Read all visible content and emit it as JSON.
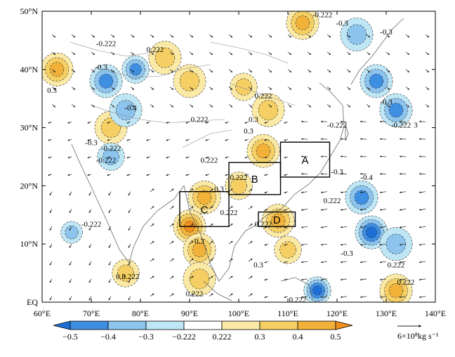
{
  "chart_data": {
    "type": "heatmap",
    "title": "",
    "xlabel": "",
    "ylabel": "",
    "xlim": [
      60,
      140
    ],
    "ylim": [
      0,
      50
    ],
    "x_ticks": [
      {
        "value": 60,
        "label": "60°E"
      },
      {
        "value": 70,
        "label": "70°E"
      },
      {
        "value": 80,
        "label": "80°E"
      },
      {
        "value": 90,
        "label": "90°E"
      },
      {
        "value": 100,
        "label": "100°E"
      },
      {
        "value": 110,
        "label": "110°E"
      },
      {
        "value": 120,
        "label": "120°E"
      },
      {
        "value": 130,
        "label": "130°E"
      },
      {
        "value": 140,
        "label": "140°E"
      }
    ],
    "y_ticks": [
      {
        "value": 0,
        "label": "EQ"
      },
      {
        "value": 10,
        "label": "10°N"
      },
      {
        "value": 20,
        "label": "20°N"
      },
      {
        "value": 30,
        "label": "30°N"
      },
      {
        "value": 40,
        "label": "40°N"
      },
      {
        "value": 50,
        "label": "50°N"
      }
    ],
    "colorbar": {
      "levels": [
        -0.5,
        -0.4,
        -0.3,
        -0.222,
        0.222,
        0.3,
        0.4,
        0.5
      ],
      "labels": [
        "−0.5",
        "−0.4",
        "−0.3",
        "−0.222",
        "0.222",
        "0.3",
        "0.4",
        "0.5"
      ],
      "colors": [
        "#1d6fd6",
        "#3e8ee2",
        "#8cc4ee",
        "#bfe6f5",
        "#ffffff",
        "#fbe9a6",
        "#f5cf63",
        "#f2b23a",
        "#ee8f1e"
      ]
    },
    "regions": [
      {
        "label": "A",
        "lon": [
          108.5,
          118.5
        ],
        "lat": [
          21.5,
          27.5
        ]
      },
      {
        "label": "B",
        "lon": [
          98,
          108.5
        ],
        "lat": [
          18.5,
          24
        ]
      },
      {
        "label": "C",
        "lon": [
          88,
          98
        ],
        "lat": [
          13,
          19
        ]
      },
      {
        "label": "D",
        "lon": [
          104,
          111.5
        ],
        "lat": [
          13,
          15.5
        ]
      }
    ],
    "fields": [
      {
        "lon": 63,
        "lat": 40,
        "r": 3,
        "v": 0.4
      },
      {
        "lon": 74,
        "lat": 30,
        "r": 3,
        "v": 0.3
      },
      {
        "lon": 85,
        "lat": 42,
        "r": 3,
        "v": 0.3
      },
      {
        "lon": 90,
        "lat": 38,
        "r": 3,
        "v": 0.3
      },
      {
        "lon": 101,
        "lat": 37,
        "r": 2.5,
        "v": 0.3
      },
      {
        "lon": 106,
        "lat": 33,
        "r": 3,
        "v": 0.3
      },
      {
        "lon": 105,
        "lat": 26,
        "r": 3,
        "v": 0.4
      },
      {
        "lon": 100,
        "lat": 20,
        "r": 2.5,
        "v": 0.3
      },
      {
        "lon": 93,
        "lat": 18,
        "r": 3,
        "v": 0.4
      },
      {
        "lon": 90,
        "lat": 13,
        "r": 3,
        "v": 0.5
      },
      {
        "lon": 92,
        "lat": 9,
        "r": 3,
        "v": 0.4
      },
      {
        "lon": 92,
        "lat": 4,
        "r": 3,
        "v": 0.3
      },
      {
        "lon": 77,
        "lat": 5,
        "r": 2.5,
        "v": 0.3
      },
      {
        "lon": 108,
        "lat": 14,
        "r": 3,
        "v": 0.4
      },
      {
        "lon": 110,
        "lat": 9,
        "r": 2.5,
        "v": 0.3
      },
      {
        "lon": 132,
        "lat": 2,
        "r": 3,
        "v": 0.4
      },
      {
        "lon": 113,
        "lat": 48,
        "r": 3,
        "v": 0.4
      },
      {
        "lon": 73,
        "lat": 38,
        "r": 3,
        "v": -0.4
      },
      {
        "lon": 79,
        "lat": 40,
        "r": 2.5,
        "v": -0.4
      },
      {
        "lon": 77,
        "lat": 33,
        "r": 3,
        "v": -0.3
      },
      {
        "lon": 74,
        "lat": 25,
        "r": 2.5,
        "v": -0.3
      },
      {
        "lon": 66,
        "lat": 12,
        "r": 2,
        "v": -0.3
      },
      {
        "lon": 124,
        "lat": 46,
        "r": 3,
        "v": -0.3
      },
      {
        "lon": 128,
        "lat": 38,
        "r": 3,
        "v": -0.4
      },
      {
        "lon": 132,
        "lat": 33,
        "r": 3,
        "v": -0.4
      },
      {
        "lon": 125,
        "lat": 18,
        "r": 3,
        "v": -0.4
      },
      {
        "lon": 127,
        "lat": 12,
        "r": 3,
        "v": -0.5
      },
      {
        "lon": 132,
        "lat": 10,
        "r": 3,
        "v": -0.3
      },
      {
        "lon": 116,
        "lat": 2,
        "r": 2.5,
        "v": -0.5
      }
    ],
    "contour_labels": [
      {
        "lon": 83,
        "lat": 43,
        "text": "0.222"
      },
      {
        "lon": 73,
        "lat": 44,
        "text": "-0.222"
      },
      {
        "lon": 72,
        "lat": 40,
        "text": "-0.3"
      },
      {
        "lon": 62,
        "lat": 36,
        "text": "0.3"
      },
      {
        "lon": 78,
        "lat": 33,
        "text": "-0.4"
      },
      {
        "lon": 70,
        "lat": 27,
        "text": "-0.3"
      },
      {
        "lon": 74,
        "lat": 26,
        "text": "-0.222"
      },
      {
        "lon": 73,
        "lat": 24,
        "text": "-0.222"
      },
      {
        "lon": 70,
        "lat": 13,
        "text": "-0.222"
      },
      {
        "lon": 92,
        "lat": 31,
        "text": "0.222"
      },
      {
        "lon": 105,
        "lat": 35,
        "text": "0.222"
      },
      {
        "lon": 103,
        "lat": 31,
        "text": "0.3"
      },
      {
        "lon": 102,
        "lat": 29,
        "text": "0.3"
      },
      {
        "lon": 94,
        "lat": 24,
        "text": "0.222"
      },
      {
        "lon": 100,
        "lat": 21,
        "text": "0.222"
      },
      {
        "lon": 96,
        "lat": 19,
        "text": "0.3"
      },
      {
        "lon": 98,
        "lat": 15,
        "text": "0.222"
      },
      {
        "lon": 105,
        "lat": 13,
        "text": "0.222"
      },
      {
        "lon": 92,
        "lat": 10,
        "text": "0.3"
      },
      {
        "lon": 76,
        "lat": 4,
        "text": "0.3"
      },
      {
        "lon": 78,
        "lat": 4,
        "text": "0.222"
      },
      {
        "lon": 91,
        "lat": 1,
        "text": "0.222"
      },
      {
        "lon": 104,
        "lat": 6,
        "text": "0.3"
      },
      {
        "lon": 112,
        "lat": 0,
        "text": "0.222"
      },
      {
        "lon": 117,
        "lat": 49,
        "text": "-0.222"
      },
      {
        "lon": 121,
        "lat": 47.5,
        "text": "-0.3"
      },
      {
        "lon": 130,
        "lat": 46,
        "text": "-0.3"
      },
      {
        "lon": 130,
        "lat": 34,
        "text": "-0.3"
      },
      {
        "lon": 120,
        "lat": 30,
        "text": "-0.222"
      },
      {
        "lon": 133,
        "lat": 30,
        "text": "-0.222"
      },
      {
        "lon": 136,
        "lat": 30,
        "text": "3"
      },
      {
        "lon": 120,
        "lat": 22,
        "text": "-0.3"
      },
      {
        "lon": 126,
        "lat": 21,
        "text": "-0.4"
      },
      {
        "lon": 119,
        "lat": 17,
        "text": "0.222"
      },
      {
        "lon": 122,
        "lat": 8,
        "text": "-0.3"
      },
      {
        "lon": 132,
        "lat": 6,
        "text": "0.222"
      },
      {
        "lon": 134,
        "lat": 3,
        "text": "0.222"
      }
    ],
    "vector_field": "lon/lat gridded moisture-flux arrows; easterly over the western Pacific, southwesterly over the Bay of Bengal and South China Sea",
    "reference_vector": {
      "label": "6×10⁸kg s⁻¹"
    }
  }
}
